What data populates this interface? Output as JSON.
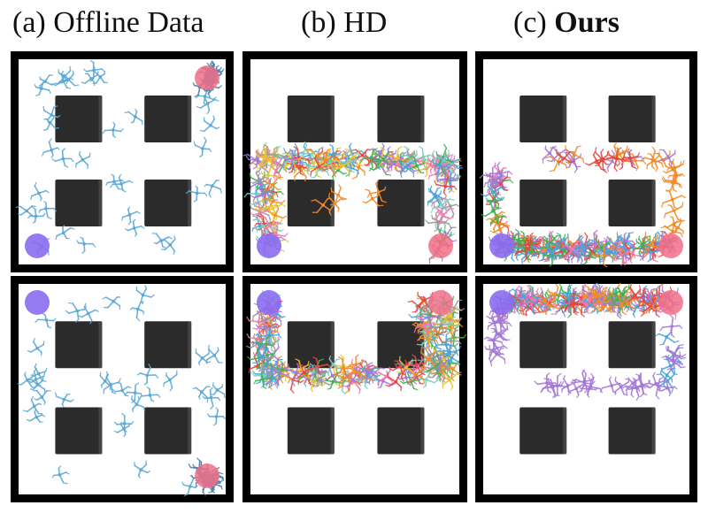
{
  "columns": [
    {
      "prefix": "(a) ",
      "name": "Offline Data",
      "bold": false
    },
    {
      "prefix": "(b) ",
      "name": "HD",
      "bold": false
    },
    {
      "prefix": "(c) ",
      "name": "Ours",
      "bold": true
    }
  ],
  "colors": {
    "frame": "#000000",
    "background": "#ffffff",
    "obstacle": "#2b2b2b",
    "start": "#8b6cf0",
    "goal": "#f0708a",
    "offline_robot": "#5ba9d6",
    "hd_palette": [
      "#e6463c",
      "#3cb44b",
      "#f08c2c",
      "#4aa3df",
      "#a478d8",
      "#e8c530",
      "#f07ab4",
      "#7cd0c0",
      "#9a9a9a"
    ],
    "ours_palette": [
      "#e6463c",
      "#3cb44b",
      "#f08c2c",
      "#a478d8",
      "#4aa3df",
      "#f07ab4"
    ]
  },
  "panels": [
    {
      "id": "a-top",
      "column": 0,
      "row": 0,
      "content": "offline",
      "start_corner": "bottom-left",
      "goal_corner": "top-right"
    },
    {
      "id": "b-top",
      "column": 1,
      "row": 0,
      "content": "hd",
      "start_corner": "bottom-left",
      "goal_corner": "bottom-right",
      "route": "u-shape-top"
    },
    {
      "id": "c-top",
      "column": 2,
      "row": 0,
      "content": "ours",
      "start_corner": "bottom-left",
      "goal_corner": "bottom-right",
      "route": "corridor-bottom"
    },
    {
      "id": "a-bottom",
      "column": 0,
      "row": 1,
      "content": "offline",
      "start_corner": "top-left",
      "goal_corner": "bottom-right"
    },
    {
      "id": "b-bottom",
      "column": 1,
      "row": 1,
      "content": "hd",
      "start_corner": "top-left",
      "goal_corner": "top-right",
      "route": "u-shape-middle"
    },
    {
      "id": "c-bottom",
      "column": 2,
      "row": 1,
      "content": "ours",
      "start_corner": "top-left",
      "goal_corner": "top-right",
      "route": "corridor-top"
    }
  ]
}
